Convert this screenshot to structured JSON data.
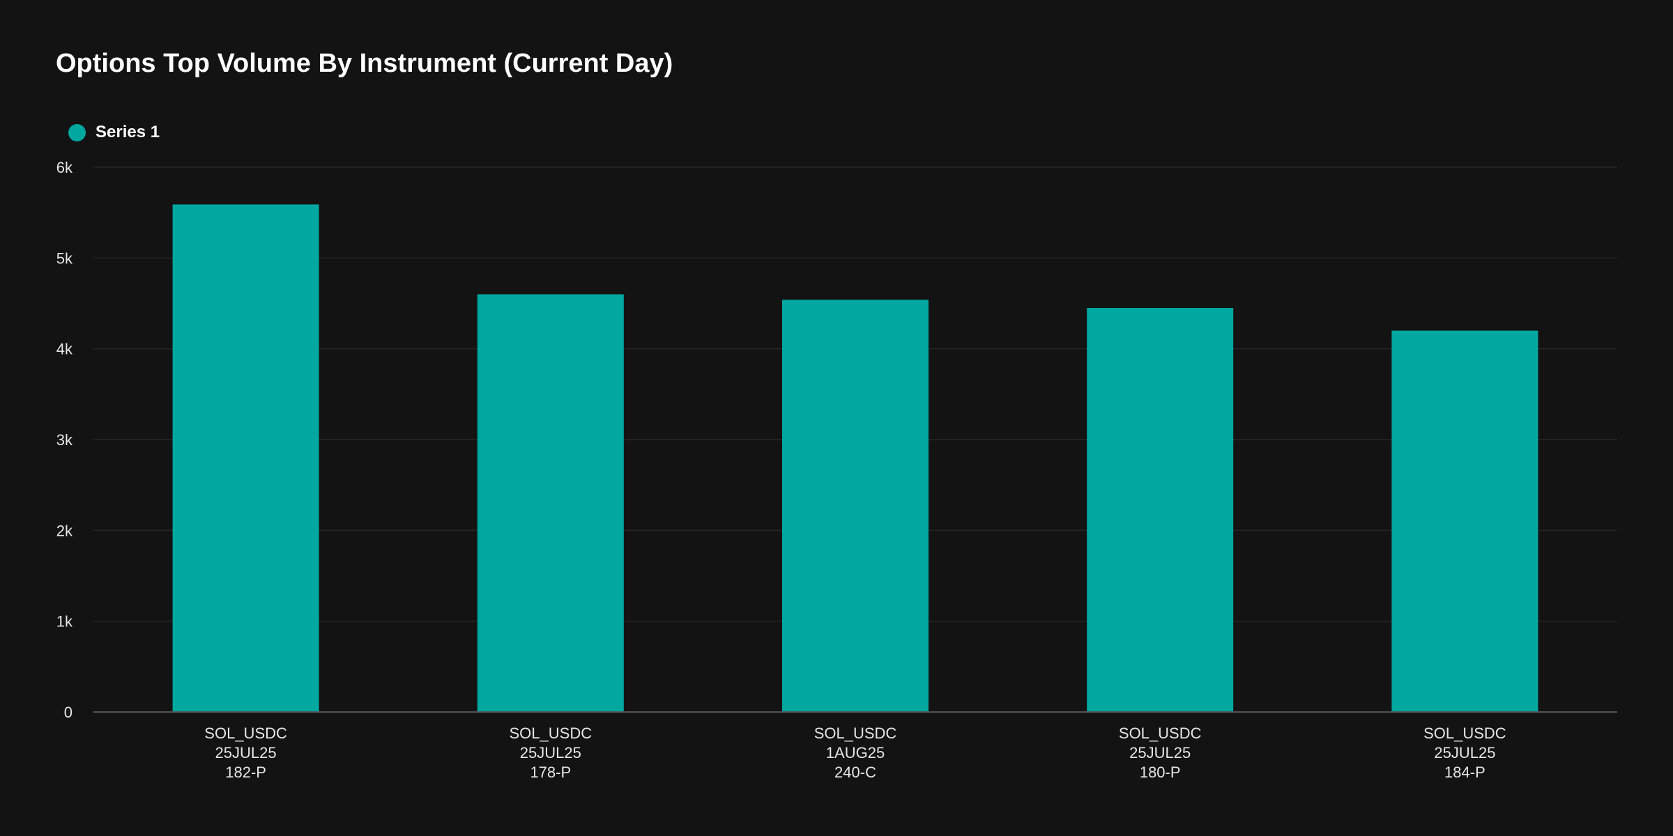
{
  "title": "Options Top Volume By Instrument (Current Day)",
  "colors": {
    "background": "#131314",
    "bar": "#00a8a0",
    "grid": "#262628",
    "axis": "#555558"
  },
  "legend": {
    "label": "Series 1"
  },
  "chart_data": {
    "type": "bar",
    "title": "Options Top Volume By Instrument (Current Day)",
    "xlabel": "",
    "ylabel": "",
    "categories": [
      [
        "SOL_USDC",
        "25JUL25",
        "182-P"
      ],
      [
        "SOL_USDC",
        "25JUL25",
        "178-P"
      ],
      [
        "SOL_USDC",
        "1AUG25",
        "240-C"
      ],
      [
        "SOL_USDC",
        "25JUL25",
        "180-P"
      ],
      [
        "SOL_USDC",
        "25JUL25",
        "184-P"
      ]
    ],
    "series": [
      {
        "name": "Series 1",
        "values": [
          5590,
          4600,
          4540,
          4450,
          4200
        ]
      }
    ],
    "ylim": [
      0,
      6000
    ],
    "yticks": [
      0,
      1000,
      2000,
      3000,
      4000,
      5000,
      6000
    ],
    "ytick_labels": [
      "0",
      "1k",
      "2k",
      "3k",
      "4k",
      "5k",
      "6k"
    ],
    "grid": true,
    "legend_position": "top-left"
  }
}
